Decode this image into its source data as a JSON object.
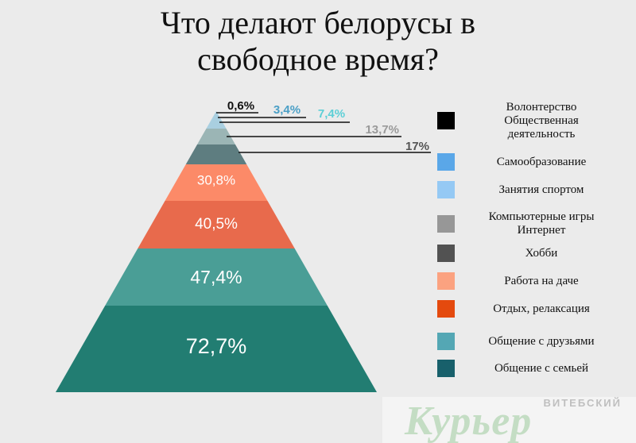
{
  "title": "Что делают белорусы в свободное время?",
  "chart_data": {
    "type": "pyramid",
    "title": "Что делают белорусы в свободное время?",
    "series": [
      {
        "name": "Волонтерство\nОбщественная\nдеятельность",
        "value": 0.6,
        "label": "0,6%",
        "color": "#000000",
        "label_color": "#111111"
      },
      {
        "name": "Самообразование",
        "value": 3.4,
        "label": "3,4%",
        "color": "#5aa7e8",
        "label_color": "#4a9fc6"
      },
      {
        "name": "Занятия спортом",
        "value": 7.4,
        "label": "7,4%",
        "color": "#95c9f4",
        "label_color": "#5ccfd6"
      },
      {
        "name": "Компьютерные игры\nИнтернет",
        "value": 13.7,
        "label": "13,7%",
        "color": "#979797",
        "label_color": "#9a9a9a"
      },
      {
        "name": "Хобби",
        "value": 17,
        "label": "17%",
        "color": "#525252",
        "label_color": "#555555"
      },
      {
        "name": "Работа на даче",
        "value": 30.8,
        "label": "30,8%",
        "color": "#fba280",
        "label_color": "#ffffff"
      },
      {
        "name": "Отдых, релаксация",
        "value": 40.5,
        "label": "40,5%",
        "color": "#e44a0e",
        "label_color": "#ffffff"
      },
      {
        "name": "Общение с друзьями",
        "value": 47.4,
        "label": "47,4%",
        "color": "#54a7b4",
        "label_color": "#ffffff"
      },
      {
        "name": "Общение с семьей",
        "value": 72.7,
        "label": "72,7%",
        "color": "#18606b",
        "label_color": "#ffffff"
      }
    ],
    "pyramid_fill": {
      "Компьютерные игры\nИнтернет": "#9bb5b5",
      "Хобби": "#5e7d80",
      "Работа на даче": "#fc8a68",
      "Отдых, релаксация": "#e86a4c",
      "Общение с друзьями": "#4a9e96",
      "Общение с семьей": "#227d72"
    },
    "legend_position": "right"
  },
  "watermark": {
    "top": "ВИТЕБСКИЙ",
    "main": "Курьер"
  }
}
